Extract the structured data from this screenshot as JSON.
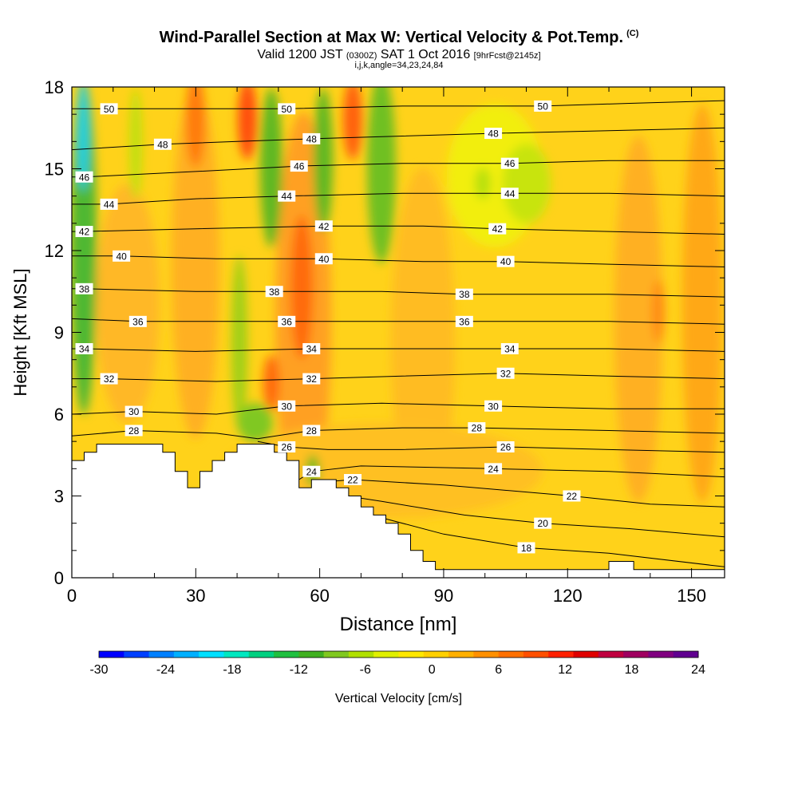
{
  "header": {
    "title": "Wind-Parallel Section at Max W: Vertical Velocity & Pot.Temp.",
    "title_mark": "(C)",
    "valid_prefix": "Valid 1200 JST",
    "valid_utc": "(0300Z)",
    "valid_date": "SAT 1 Oct 2016",
    "forecast": "[9hrFcst@2145z]",
    "indices": "i,j,k,angle=34,23,24,84"
  },
  "chart_data": {
    "type": "heatmap",
    "xlabel": "Distance [nm]",
    "ylabel": "Height [Kft MSL]",
    "xlim": [
      0,
      158
    ],
    "ylim": [
      0,
      18
    ],
    "x_ticks": [
      0,
      30,
      60,
      90,
      120,
      150
    ],
    "y_ticks": [
      0,
      3,
      6,
      9,
      12,
      15,
      18
    ],
    "colorbar": {
      "label": "Vertical Velocity [cm/s]",
      "range": [
        -30,
        24
      ],
      "ticks": [
        -30,
        -24,
        -18,
        -12,
        -6,
        0,
        6,
        12,
        18,
        24
      ],
      "colors": [
        "#0000ff",
        "#0040ff",
        "#0080ff",
        "#00b0ff",
        "#00e0ff",
        "#00e8c0",
        "#00d080",
        "#20c040",
        "#40b020",
        "#80c820",
        "#b0e000",
        "#e0f000",
        "#ffe800",
        "#ffd000",
        "#ffb000",
        "#ff9000",
        "#ff7000",
        "#ff5000",
        "#ff2000",
        "#e00000",
        "#c00040",
        "#a00060",
        "#800080",
        "#600090"
      ]
    },
    "terrain_kft": [
      [
        0,
        4.3
      ],
      [
        3,
        4.3
      ],
      [
        3,
        4.6
      ],
      [
        6,
        4.6
      ],
      [
        6,
        4.9
      ],
      [
        22,
        4.9
      ],
      [
        22,
        4.6
      ],
      [
        25,
        4.6
      ],
      [
        25,
        3.9
      ],
      [
        28,
        3.9
      ],
      [
        28,
        3.3
      ],
      [
        31,
        3.3
      ],
      [
        31,
        3.9
      ],
      [
        34,
        3.9
      ],
      [
        34,
        4.3
      ],
      [
        37,
        4.3
      ],
      [
        37,
        4.6
      ],
      [
        40,
        4.6
      ],
      [
        40,
        4.9
      ],
      [
        49,
        4.9
      ],
      [
        49,
        4.6
      ],
      [
        52,
        4.6
      ],
      [
        52,
        4.3
      ],
      [
        55,
        4.3
      ],
      [
        55,
        3.9
      ],
      [
        55,
        3.3
      ],
      [
        58,
        3.3
      ],
      [
        58,
        3.6
      ],
      [
        61,
        3.6
      ],
      [
        64,
        3.6
      ],
      [
        64,
        3.3
      ],
      [
        67,
        3.3
      ],
      [
        67,
        3.0
      ],
      [
        70,
        3.0
      ],
      [
        70,
        2.6
      ],
      [
        73,
        2.6
      ],
      [
        73,
        2.3
      ],
      [
        76,
        2.3
      ],
      [
        76,
        2.0
      ],
      [
        79,
        2.0
      ],
      [
        79,
        1.6
      ],
      [
        82,
        1.6
      ],
      [
        82,
        1.0
      ],
      [
        85,
        1.0
      ],
      [
        85,
        0.6
      ],
      [
        88,
        0.6
      ],
      [
        88,
        0.3
      ],
      [
        91,
        0.3
      ],
      [
        130,
        0.3
      ],
      [
        130,
        0.6
      ],
      [
        136,
        0.6
      ],
      [
        136,
        0.3
      ],
      [
        150,
        0.3
      ],
      [
        158,
        0.3
      ]
    ],
    "isentropes": [
      {
        "theta": 18,
        "label_x": [
          110
        ],
        "pts": [
          [
            55,
            3.1
          ],
          [
            70,
            2.4
          ],
          [
            90,
            1.6
          ],
          [
            110,
            1.1
          ],
          [
            130,
            0.9
          ],
          [
            158,
            0.4
          ]
        ]
      },
      {
        "theta": 20,
        "label_x": [
          114
        ],
        "pts": [
          [
            58,
            3.2
          ],
          [
            75,
            2.8
          ],
          [
            95,
            2.3
          ],
          [
            114,
            2.0
          ],
          [
            135,
            1.8
          ],
          [
            158,
            1.5
          ]
        ]
      },
      {
        "theta": 22,
        "label_x": [
          68,
          121
        ],
        "pts": [
          [
            60,
            3.5
          ],
          [
            68,
            3.6
          ],
          [
            90,
            3.4
          ],
          [
            121,
            3.0
          ],
          [
            140,
            2.7
          ],
          [
            158,
            2.6
          ]
        ]
      },
      {
        "theta": 24,
        "label_x": [
          58,
          102
        ],
        "pts": [
          [
            55,
            3.6
          ],
          [
            58,
            3.9
          ],
          [
            70,
            4.1
          ],
          [
            102,
            4.0
          ],
          [
            130,
            3.9
          ],
          [
            158,
            3.7
          ]
        ]
      },
      {
        "theta": 26,
        "label_x": [
          52,
          105
        ],
        "pts": [
          [
            45,
            5.0
          ],
          [
            52,
            4.8
          ],
          [
            62,
            4.7
          ],
          [
            80,
            4.7
          ],
          [
            105,
            4.8
          ],
          [
            130,
            4.7
          ],
          [
            158,
            4.6
          ]
        ]
      },
      {
        "theta": 28,
        "label_x": [
          15,
          58,
          98
        ],
        "pts": [
          [
            0,
            5.2
          ],
          [
            15,
            5.4
          ],
          [
            35,
            5.3
          ],
          [
            45,
            5.1
          ],
          [
            58,
            5.4
          ],
          [
            80,
            5.5
          ],
          [
            98,
            5.5
          ],
          [
            130,
            5.4
          ],
          [
            158,
            5.3
          ]
        ]
      },
      {
        "theta": 30,
        "label_x": [
          15,
          52,
          102
        ],
        "pts": [
          [
            0,
            6.0
          ],
          [
            15,
            6.1
          ],
          [
            35,
            6.0
          ],
          [
            52,
            6.3
          ],
          [
            75,
            6.4
          ],
          [
            102,
            6.3
          ],
          [
            130,
            6.2
          ],
          [
            158,
            6.2
          ]
        ]
      },
      {
        "theta": 32,
        "label_x": [
          9,
          58,
          105
        ],
        "pts": [
          [
            0,
            7.3
          ],
          [
            9,
            7.3
          ],
          [
            35,
            7.2
          ],
          [
            58,
            7.3
          ],
          [
            80,
            7.4
          ],
          [
            105,
            7.5
          ],
          [
            130,
            7.4
          ],
          [
            158,
            7.3
          ]
        ]
      },
      {
        "theta": 34,
        "label_x": [
          3,
          58,
          106
        ],
        "pts": [
          [
            0,
            8.4
          ],
          [
            3,
            8.4
          ],
          [
            30,
            8.3
          ],
          [
            58,
            8.4
          ],
          [
            85,
            8.4
          ],
          [
            106,
            8.4
          ],
          [
            130,
            8.4
          ],
          [
            158,
            8.3
          ]
        ]
      },
      {
        "theta": 36,
        "label_x": [
          16,
          52,
          95
        ],
        "pts": [
          [
            0,
            9.5
          ],
          [
            16,
            9.4
          ],
          [
            35,
            9.4
          ],
          [
            52,
            9.4
          ],
          [
            75,
            9.4
          ],
          [
            95,
            9.4
          ],
          [
            130,
            9.4
          ],
          [
            158,
            9.3
          ]
        ]
      },
      {
        "theta": 38,
        "label_x": [
          3,
          49,
          95
        ],
        "pts": [
          [
            0,
            10.6
          ],
          [
            3,
            10.6
          ],
          [
            30,
            10.5
          ],
          [
            49,
            10.5
          ],
          [
            75,
            10.5
          ],
          [
            95,
            10.4
          ],
          [
            130,
            10.4
          ],
          [
            158,
            10.3
          ]
        ]
      },
      {
        "theta": 40,
        "label_x": [
          12,
          61,
          105
        ],
        "pts": [
          [
            0,
            11.8
          ],
          [
            12,
            11.8
          ],
          [
            35,
            11.7
          ],
          [
            61,
            11.7
          ],
          [
            85,
            11.6
          ],
          [
            105,
            11.6
          ],
          [
            130,
            11.5
          ],
          [
            158,
            11.4
          ]
        ]
      },
      {
        "theta": 42,
        "label_x": [
          3,
          61,
          103
        ],
        "pts": [
          [
            0,
            12.7
          ],
          [
            3,
            12.7
          ],
          [
            30,
            12.8
          ],
          [
            61,
            12.9
          ],
          [
            85,
            12.9
          ],
          [
            103,
            12.8
          ],
          [
            130,
            12.7
          ],
          [
            158,
            12.6
          ]
        ]
      },
      {
        "theta": 44,
        "label_x": [
          9,
          52,
          106
        ],
        "pts": [
          [
            0,
            13.7
          ],
          [
            9,
            13.7
          ],
          [
            30,
            13.9
          ],
          [
            52,
            14.0
          ],
          [
            80,
            14.1
          ],
          [
            106,
            14.1
          ],
          [
            130,
            14.1
          ],
          [
            158,
            14.0
          ]
        ]
      },
      {
        "theta": 46,
        "label_x": [
          3,
          55,
          106
        ],
        "pts": [
          [
            0,
            14.7
          ],
          [
            3,
            14.7
          ],
          [
            30,
            14.9
          ],
          [
            55,
            15.1
          ],
          [
            80,
            15.2
          ],
          [
            106,
            15.2
          ],
          [
            130,
            15.3
          ],
          [
            158,
            15.3
          ]
        ]
      },
      {
        "theta": 48,
        "label_x": [
          22,
          58,
          102
        ],
        "pts": [
          [
            0,
            15.7
          ],
          [
            22,
            15.9
          ],
          [
            40,
            16.0
          ],
          [
            58,
            16.1
          ],
          [
            80,
            16.2
          ],
          [
            102,
            16.3
          ],
          [
            130,
            16.4
          ],
          [
            158,
            16.5
          ]
        ]
      },
      {
        "theta": 50,
        "label_x": [
          9,
          52,
          114
        ],
        "pts": [
          [
            0,
            17.2
          ],
          [
            9,
            17.2
          ],
          [
            30,
            17.2
          ],
          [
            52,
            17.2
          ],
          [
            80,
            17.3
          ],
          [
            114,
            17.3
          ],
          [
            135,
            17.4
          ],
          [
            158,
            17.5
          ]
        ]
      }
    ]
  }
}
